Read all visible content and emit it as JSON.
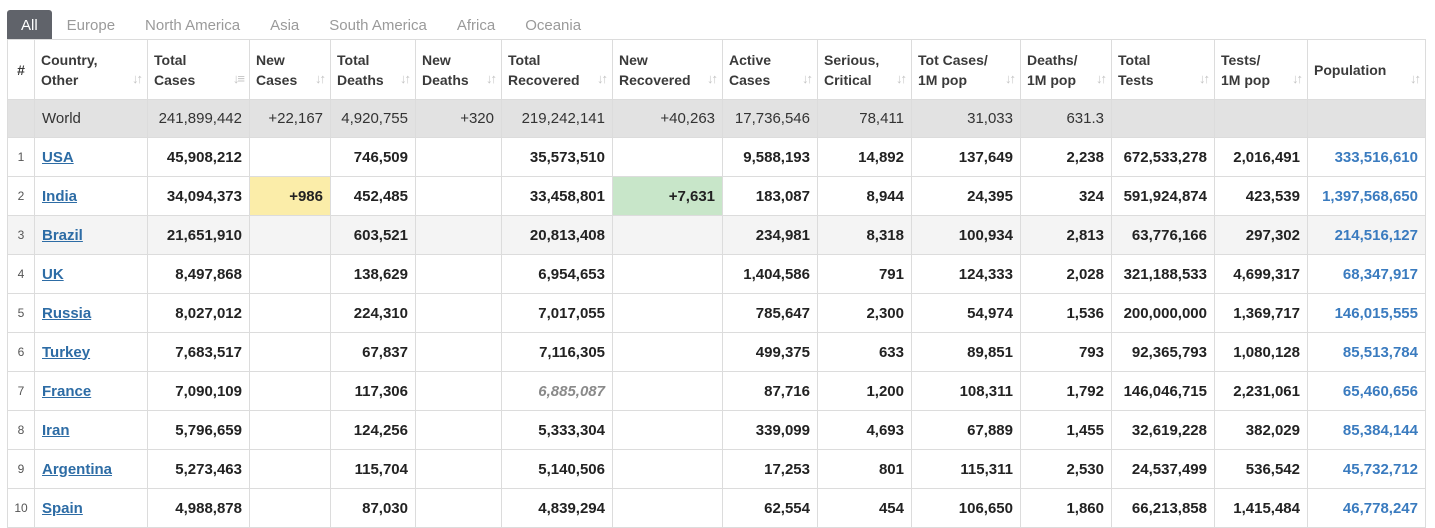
{
  "tabs": [
    "All",
    "Europe",
    "North America",
    "Asia",
    "South America",
    "Africa",
    "Oceania"
  ],
  "headers": {
    "rank": "#",
    "country": [
      "Country,",
      "Other"
    ],
    "total_cases": [
      "Total",
      "Cases"
    ],
    "new_cases": [
      "New",
      "Cases"
    ],
    "total_deaths": [
      "Total",
      "Deaths"
    ],
    "new_deaths": [
      "New",
      "Deaths"
    ],
    "total_recovered": [
      "Total",
      "Recovered"
    ],
    "new_recovered": [
      "New",
      "Recovered"
    ],
    "active_cases": [
      "Active",
      "Cases"
    ],
    "serious": [
      "Serious,",
      "Critical"
    ],
    "cases_per_m": [
      "Tot Cases/",
      "1M pop"
    ],
    "deaths_per_m": [
      "Deaths/",
      "1M pop"
    ],
    "total_tests": [
      "Total",
      "Tests"
    ],
    "tests_per_m": [
      "Tests/",
      "1M pop"
    ],
    "population": "Population"
  },
  "world": {
    "country": "World",
    "total_cases": "241,899,442",
    "new_cases": "+22,167",
    "total_deaths": "4,920,755",
    "new_deaths": "+320",
    "total_recovered": "219,242,141",
    "new_recovered": "+40,263",
    "active_cases": "17,736,546",
    "serious": "78,411",
    "cases_per_m": "31,033",
    "deaths_per_m": "631.3",
    "total_tests": "",
    "tests_per_m": "",
    "population": ""
  },
  "rows": [
    {
      "rank": "1",
      "country": "USA",
      "total_cases": "45,908,212",
      "new_cases": "",
      "total_deaths": "746,509",
      "new_deaths": "",
      "total_recovered": "35,573,510",
      "new_recovered": "",
      "active_cases": "9,588,193",
      "serious": "14,892",
      "cases_per_m": "137,649",
      "deaths_per_m": "2,238",
      "total_tests": "672,533,278",
      "tests_per_m": "2,016,491",
      "population": "333,516,610"
    },
    {
      "rank": "2",
      "country": "India",
      "total_cases": "34,094,373",
      "new_cases": "+986",
      "total_deaths": "452,485",
      "new_deaths": "",
      "total_recovered": "33,458,801",
      "new_recovered": "+7,631",
      "active_cases": "183,087",
      "serious": "8,944",
      "cases_per_m": "24,395",
      "deaths_per_m": "324",
      "total_tests": "591,924,874",
      "tests_per_m": "423,539",
      "population": "1,397,568,650"
    },
    {
      "rank": "3",
      "country": "Brazil",
      "total_cases": "21,651,910",
      "new_cases": "",
      "total_deaths": "603,521",
      "new_deaths": "",
      "total_recovered": "20,813,408",
      "new_recovered": "",
      "active_cases": "234,981",
      "serious": "8,318",
      "cases_per_m": "100,934",
      "deaths_per_m": "2,813",
      "total_tests": "63,776,166",
      "tests_per_m": "297,302",
      "population": "214,516,127"
    },
    {
      "rank": "4",
      "country": "UK",
      "total_cases": "8,497,868",
      "new_cases": "",
      "total_deaths": "138,629",
      "new_deaths": "",
      "total_recovered": "6,954,653",
      "new_recovered": "",
      "active_cases": "1,404,586",
      "serious": "791",
      "cases_per_m": "124,333",
      "deaths_per_m": "2,028",
      "total_tests": "321,188,533",
      "tests_per_m": "4,699,317",
      "population": "68,347,917"
    },
    {
      "rank": "5",
      "country": "Russia",
      "total_cases": "8,027,012",
      "new_cases": "",
      "total_deaths": "224,310",
      "new_deaths": "",
      "total_recovered": "7,017,055",
      "new_recovered": "",
      "active_cases": "785,647",
      "serious": "2,300",
      "cases_per_m": "54,974",
      "deaths_per_m": "1,536",
      "total_tests": "200,000,000",
      "tests_per_m": "1,369,717",
      "population": "146,015,555"
    },
    {
      "rank": "6",
      "country": "Turkey",
      "total_cases": "7,683,517",
      "new_cases": "",
      "total_deaths": "67,837",
      "new_deaths": "",
      "total_recovered": "7,116,305",
      "new_recovered": "",
      "active_cases": "499,375",
      "serious": "633",
      "cases_per_m": "89,851",
      "deaths_per_m": "793",
      "total_tests": "92,365,793",
      "tests_per_m": "1,080,128",
      "population": "85,513,784"
    },
    {
      "rank": "7",
      "country": "France",
      "total_cases": "7,090,109",
      "new_cases": "",
      "total_deaths": "117,306",
      "new_deaths": "",
      "total_recovered": "6,885,087",
      "new_recovered": "",
      "active_cases": "87,716",
      "serious": "1,200",
      "cases_per_m": "108,311",
      "deaths_per_m": "1,792",
      "total_tests": "146,046,715",
      "tests_per_m": "2,231,061",
      "population": "65,460,656"
    },
    {
      "rank": "8",
      "country": "Iran",
      "total_cases": "5,796,659",
      "new_cases": "",
      "total_deaths": "124,256",
      "new_deaths": "",
      "total_recovered": "5,333,304",
      "new_recovered": "",
      "active_cases": "339,099",
      "serious": "4,693",
      "cases_per_m": "67,889",
      "deaths_per_m": "1,455",
      "total_tests": "32,619,228",
      "tests_per_m": "382,029",
      "population": "85,384,144"
    },
    {
      "rank": "9",
      "country": "Argentina",
      "total_cases": "5,273,463",
      "new_cases": "",
      "total_deaths": "115,704",
      "new_deaths": "",
      "total_recovered": "5,140,506",
      "new_recovered": "",
      "active_cases": "17,253",
      "serious": "801",
      "cases_per_m": "115,311",
      "deaths_per_m": "2,530",
      "total_tests": "24,537,499",
      "tests_per_m": "536,542",
      "population": "45,732,712"
    },
    {
      "rank": "10",
      "country": "Spain",
      "total_cases": "4,988,878",
      "new_cases": "",
      "total_deaths": "87,030",
      "new_deaths": "",
      "total_recovered": "4,839,294",
      "new_recovered": "",
      "active_cases": "62,554",
      "serious": "454",
      "cases_per_m": "106,650",
      "deaths_per_m": "1,860",
      "total_tests": "66,213,858",
      "tests_per_m": "1,415,484",
      "population": "46,778,247"
    }
  ],
  "highlight_colors": {
    "new_cases": "#fbeda9",
    "new_recovered": "#c8e6c9"
  },
  "icons": {
    "sort": "sort-arrows-icon",
    "sort_active": "sort-active-icon"
  }
}
